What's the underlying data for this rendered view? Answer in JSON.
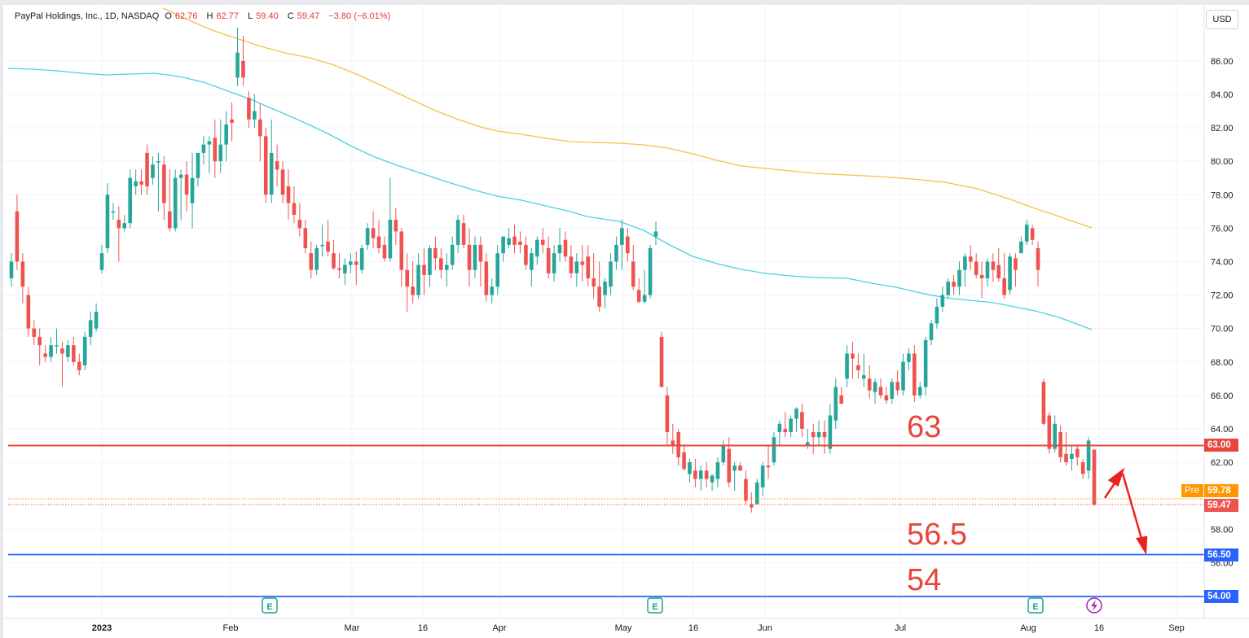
{
  "legend": {
    "symbol": "PayPal Holdings, Inc., 1D, NASDAQ",
    "open_label": "O",
    "open": "62.76",
    "high_label": "H",
    "high": "62.77",
    "low_label": "L",
    "low": "59.40",
    "close_label": "C",
    "close": "59.47",
    "change": "−3.80 (−6.01%)"
  },
  "currency": "USD",
  "price_tags": {
    "resistance": "63.00",
    "pre_label": "Pre",
    "pre_value": "59.78",
    "last": "59.47",
    "support_1": "56.50",
    "support_2": "54.00"
  },
  "annotations": {
    "level_63": "63",
    "level_56_5": "56.5",
    "level_54": "54"
  },
  "colors": {
    "up": "#26a69a",
    "down": "#ef5350",
    "ma_fast": "#4dd0e1",
    "ma_slow": "#f7c04a",
    "resistance": "#e8453c",
    "support": "#2962ff",
    "pre": "#ff9800",
    "arrow": "#e8231d"
  },
  "chart_data": {
    "type": "candlestick",
    "y_axis": {
      "ticks": [
        "86.00",
        "84.00",
        "82.00",
        "80.00",
        "78.00",
        "76.00",
        "74.00",
        "72.00",
        "70.00",
        "68.00",
        "66.00",
        "64.00",
        "62.00",
        "58.00",
        "56.00"
      ],
      "range": [
        53.7,
        88.8
      ]
    },
    "x_axis": {
      "ticks": [
        "2023",
        "Feb",
        "Mar",
        "16",
        "Apr",
        "May",
        "16",
        "Jun",
        "Jul",
        "Aug",
        "16",
        "Sep"
      ]
    },
    "horizontal_lines": [
      63.0,
      56.5,
      54.0
    ],
    "earnings_markers": [
      "E",
      "E",
      "E"
    ],
    "candles": [
      [
        73.0,
        74.5,
        72.5,
        74.0
      ],
      [
        77.0,
        78.0,
        73.5,
        74.0
      ],
      [
        74.0,
        74.5,
        71.5,
        72.5
      ],
      [
        72.0,
        72.5,
        69.5,
        70.0
      ],
      [
        70.0,
        70.5,
        69.0,
        69.5
      ],
      [
        69.5,
        70.0,
        67.8,
        69.0
      ],
      [
        68.5,
        69.0,
        68.0,
        68.3
      ],
      [
        68.3,
        69.5,
        68.0,
        69.0
      ],
      [
        69.0,
        70.0,
        68.5,
        69.0
      ],
      [
        68.8,
        69.2,
        66.5,
        68.5
      ],
      [
        68.3,
        69.3,
        68.0,
        69.0
      ],
      [
        69.0,
        69.5,
        67.8,
        68.0
      ],
      [
        68.0,
        68.5,
        67.2,
        67.5
      ],
      [
        67.8,
        69.8,
        67.5,
        69.5
      ],
      [
        69.5,
        71.0,
        69.0,
        70.5
      ],
      [
        70.0,
        71.5,
        69.8,
        71.0
      ],
      [
        73.5,
        75.0,
        73.3,
        74.5
      ],
      [
        74.8,
        78.7,
        74.5,
        78.0
      ],
      [
        77.0,
        77.5,
        76.5,
        77.0
      ],
      [
        76.5,
        77.3,
        74.0,
        76.0
      ],
      [
        76.0,
        76.8,
        75.8,
        76.3
      ],
      [
        76.3,
        79.5,
        76.0,
        79.0
      ],
      [
        78.5,
        79.5,
        78.0,
        78.8
      ],
      [
        78.8,
        79.5,
        78.0,
        78.6
      ],
      [
        80.5,
        81.0,
        78.0,
        78.5
      ],
      [
        79.0,
        80.3,
        78.6,
        79.8
      ],
      [
        80.0,
        80.5,
        77.0,
        80.0
      ],
      [
        79.8,
        80.3,
        76.5,
        77.5
      ],
      [
        77.0,
        79.5,
        75.8,
        76.0
      ],
      [
        76.0,
        79.5,
        75.8,
        79.0
      ],
      [
        79.0,
        79.5,
        76.5,
        79.2
      ],
      [
        79.2,
        80.0,
        77.0,
        78.0
      ],
      [
        77.5,
        80.5,
        76.0,
        79.0
      ],
      [
        79.0,
        80.5,
        78.5,
        80.5
      ],
      [
        80.5,
        81.5,
        79.8,
        81.0
      ],
      [
        81.0,
        81.5,
        79.3,
        81.2
      ],
      [
        81.4,
        82.5,
        79.0,
        80.0
      ],
      [
        80.0,
        82.5,
        79.3,
        81.0
      ],
      [
        81.0,
        83.0,
        80.0,
        82.2
      ],
      [
        82.5,
        83.5,
        81.2,
        82.3
      ],
      [
        85.0,
        88.0,
        84.5,
        86.5
      ],
      [
        86.0,
        87.5,
        84.5,
        85.0
      ],
      [
        83.8,
        84.2,
        82.0,
        82.5
      ],
      [
        82.5,
        84.0,
        82.0,
        83.0
      ],
      [
        82.5,
        83.5,
        80.0,
        81.5
      ],
      [
        81.5,
        82.0,
        77.5,
        78.0
      ],
      [
        78.0,
        82.5,
        77.5,
        80.5
      ],
      [
        80.0,
        81.0,
        78.5,
        79.5
      ],
      [
        79.5,
        80.0,
        77.5,
        78.0
      ],
      [
        78.5,
        79.5,
        76.5,
        77.5
      ],
      [
        77.5,
        78.5,
        76.3,
        76.8
      ],
      [
        76.5,
        77.5,
        75.5,
        76.0
      ],
      [
        76.0,
        76.5,
        74.5,
        74.8
      ],
      [
        74.5,
        75.2,
        73.0,
        73.5
      ],
      [
        73.5,
        75.0,
        73.2,
        74.8
      ],
      [
        75.0,
        76.2,
        74.3,
        75.0
      ],
      [
        75.2,
        76.5,
        74.3,
        74.6
      ],
      [
        74.5,
        75.3,
        73.5,
        73.6
      ],
      [
        73.6,
        74.5,
        73.0,
        73.5
      ],
      [
        73.3,
        74.2,
        72.6,
        73.8
      ],
      [
        73.8,
        74.5,
        73.3,
        74.0
      ],
      [
        74.0,
        74.6,
        72.6,
        73.8
      ],
      [
        73.5,
        75.0,
        73.3,
        74.8
      ],
      [
        75.0,
        76.3,
        74.7,
        76.0
      ],
      [
        76.0,
        77.0,
        74.8,
        75.4
      ],
      [
        75.5,
        76.5,
        74.5,
        74.8
      ],
      [
        75.0,
        75.5,
        74.0,
        74.2
      ],
      [
        74.2,
        79.0,
        74.0,
        76.5
      ],
      [
        76.5,
        77.2,
        75.0,
        75.8
      ],
      [
        75.8,
        76.0,
        72.5,
        73.5
      ],
      [
        73.5,
        74.5,
        71.0,
        72.5
      ],
      [
        72.5,
        74.0,
        71.5,
        72.0
      ],
      [
        72.0,
        74.5,
        71.8,
        73.8
      ],
      [
        73.8,
        74.8,
        72.0,
        73.2
      ],
      [
        73.2,
        75.0,
        72.5,
        74.8
      ],
      [
        74.8,
        75.5,
        73.5,
        74.2
      ],
      [
        74.2,
        74.8,
        73.0,
        73.5
      ],
      [
        73.5,
        74.5,
        72.5,
        73.8
      ],
      [
        73.8,
        75.5,
        73.5,
        75.0
      ],
      [
        75.0,
        76.8,
        74.5,
        76.5
      ],
      [
        76.3,
        76.8,
        74.8,
        75.0
      ],
      [
        75.0,
        76.0,
        72.5,
        73.5
      ],
      [
        73.5,
        75.5,
        73.0,
        75.0
      ],
      [
        75.0,
        75.5,
        72.5,
        74.0
      ],
      [
        74.0,
        74.5,
        71.6,
        72.0
      ],
      [
        72.0,
        73.0,
        71.5,
        72.5
      ],
      [
        72.5,
        75.0,
        72.0,
        74.5
      ],
      [
        74.5,
        75.5,
        74.0,
        75.5
      ],
      [
        75.0,
        76.0,
        74.8,
        75.4
      ],
      [
        75.5,
        76.2,
        74.5,
        75.0
      ],
      [
        75.2,
        75.8,
        74.5,
        75.0
      ],
      [
        75.0,
        75.5,
        73.5,
        73.8
      ],
      [
        73.5,
        74.8,
        72.5,
        74.5
      ],
      [
        74.3,
        75.5,
        73.8,
        75.3
      ],
      [
        75.3,
        76.0,
        74.5,
        75.0
      ],
      [
        74.8,
        75.5,
        73.0,
        73.3
      ],
      [
        73.3,
        75.0,
        72.8,
        74.5
      ],
      [
        74.5,
        76.0,
        74.0,
        75.0
      ],
      [
        75.3,
        75.8,
        74.0,
        74.3
      ],
      [
        74.3,
        75.0,
        73.0,
        73.3
      ],
      [
        73.3,
        74.5,
        72.5,
        74.0
      ],
      [
        74.0,
        75.0,
        72.8,
        73.8
      ],
      [
        74.3,
        75.0,
        72.5,
        73.0
      ],
      [
        73.0,
        74.5,
        71.8,
        72.5
      ],
      [
        72.5,
        74.0,
        71.0,
        71.3
      ],
      [
        72.0,
        73.0,
        71.2,
        72.8
      ],
      [
        72.5,
        74.5,
        72.0,
        74.0
      ],
      [
        74.0,
        75.5,
        73.5,
        75.0
      ],
      [
        75.0,
        76.5,
        73.5,
        76.0
      ],
      [
        75.5,
        76.0,
        74.0,
        74.5
      ],
      [
        74.0,
        75.0,
        72.3,
        72.5
      ],
      [
        72.3,
        73.0,
        71.5,
        71.6
      ],
      [
        71.6,
        73.5,
        71.5,
        72.0
      ],
      [
        72.0,
        75.0,
        71.8,
        74.8
      ],
      [
        75.5,
        76.4,
        75.0,
        75.8
      ],
      [
        69.5,
        69.8,
        66.5,
        66.5
      ],
      [
        66.0,
        66.5,
        63.0,
        63.8
      ],
      [
        63.3,
        64.3,
        62.5,
        63.0
      ],
      [
        63.8,
        64.0,
        61.8,
        62.3
      ],
      [
        62.6,
        63.0,
        61.5,
        61.6
      ],
      [
        61.3,
        62.2,
        60.8,
        62.0
      ],
      [
        61.5,
        62.2,
        60.5,
        61.0
      ],
      [
        61.0,
        61.8,
        60.3,
        61.5
      ],
      [
        61.5,
        62.0,
        60.5,
        61.0
      ],
      [
        60.8,
        61.3,
        60.3,
        61.2
      ],
      [
        61.0,
        62.3,
        60.5,
        62.0
      ],
      [
        62.0,
        63.3,
        61.8,
        63.0
      ],
      [
        62.8,
        63.5,
        60.5,
        60.8
      ],
      [
        61.5,
        62.0,
        60.3,
        61.8
      ],
      [
        61.8,
        62.0,
        61.5,
        61.5
      ],
      [
        61.0,
        61.5,
        59.5,
        59.7
      ],
      [
        59.5,
        60.2,
        59.0,
        59.3
      ],
      [
        59.5,
        61.0,
        59.5,
        60.8
      ],
      [
        60.5,
        62.0,
        60.0,
        61.8
      ],
      [
        61.8,
        63.0,
        61.0,
        61.7
      ],
      [
        62.0,
        63.8,
        61.8,
        63.5
      ],
      [
        63.8,
        64.5,
        63.0,
        64.3
      ],
      [
        64.0,
        65.0,
        63.5,
        63.8
      ],
      [
        63.8,
        64.8,
        63.5,
        64.6
      ],
      [
        64.6,
        65.3,
        63.8,
        65.2
      ],
      [
        65.0,
        65.5,
        63.5,
        64.0
      ],
      [
        63.0,
        64.0,
        62.8,
        63.2
      ],
      [
        63.8,
        64.3,
        62.5,
        63.5
      ],
      [
        63.5,
        64.5,
        63.0,
        63.8
      ],
      [
        63.8,
        64.5,
        62.5,
        63.5
      ],
      [
        62.8,
        65.5,
        62.5,
        64.8
      ],
      [
        64.5,
        67.0,
        64.0,
        66.5
      ],
      [
        66.0,
        66.5,
        65.5,
        65.5
      ],
      [
        67.0,
        69.0,
        66.5,
        68.5
      ],
      [
        68.5,
        69.2,
        67.0,
        68.2
      ],
      [
        67.8,
        68.5,
        67.0,
        67.5
      ],
      [
        67.0,
        68.5,
        66.5,
        67.2
      ],
      [
        67.0,
        67.8,
        65.8,
        66.3
      ],
      [
        66.2,
        67.0,
        65.5,
        66.8
      ],
      [
        66.5,
        67.0,
        65.8,
        66.0
      ],
      [
        66.0,
        66.5,
        65.5,
        65.7
      ],
      [
        65.8,
        67.0,
        65.5,
        66.8
      ],
      [
        66.8,
        67.5,
        66.0,
        66.3
      ],
      [
        66.3,
        68.5,
        66.0,
        68.0
      ],
      [
        68.0,
        68.8,
        67.5,
        68.5
      ],
      [
        68.5,
        69.0,
        65.6,
        66.0
      ],
      [
        66.0,
        66.8,
        65.8,
        66.5
      ],
      [
        66.5,
        69.5,
        66.0,
        69.3
      ],
      [
        69.3,
        70.5,
        69.0,
        70.3
      ],
      [
        70.3,
        71.8,
        70.0,
        71.3
      ],
      [
        71.3,
        72.5,
        71.0,
        72.0
      ],
      [
        72.0,
        73.0,
        71.8,
        72.8
      ],
      [
        72.8,
        73.2,
        72.0,
        72.5
      ],
      [
        72.5,
        74.0,
        72.0,
        73.5
      ],
      [
        73.5,
        74.5,
        72.5,
        74.3
      ],
      [
        74.3,
        75.0,
        73.5,
        74.0
      ],
      [
        74.0,
        74.5,
        73.0,
        73.2
      ],
      [
        73.2,
        74.0,
        71.8,
        73.0
      ],
      [
        73.0,
        74.2,
        72.5,
        74.0
      ],
      [
        74.0,
        74.5,
        72.8,
        73.5
      ],
      [
        73.8,
        74.8,
        72.8,
        73.0
      ],
      [
        73.0,
        74.5,
        71.8,
        72.0
      ],
      [
        72.3,
        74.5,
        72.0,
        74.3
      ],
      [
        74.2,
        74.5,
        72.5,
        73.5
      ],
      [
        74.5,
        75.5,
        74.5,
        75.2
      ],
      [
        75.2,
        76.5,
        75.0,
        76.2
      ],
      [
        76.0,
        76.2,
        75.0,
        75.3
      ],
      [
        74.8,
        75.2,
        72.5,
        73.5
      ],
      [
        66.8,
        67.0,
        64.2,
        64.3
      ],
      [
        64.8,
        65.0,
        62.5,
        62.8
      ],
      [
        62.8,
        64.8,
        62.6,
        64.3
      ],
      [
        63.8,
        64.2,
        62.0,
        62.3
      ],
      [
        62.5,
        63.8,
        61.8,
        62.0
      ],
      [
        62.2,
        63.0,
        61.5,
        62.5
      ],
      [
        62.8,
        63.0,
        61.8,
        62.3
      ],
      [
        62.0,
        62.2,
        61.0,
        61.3
      ],
      [
        61.5,
        63.5,
        61.0,
        63.3
      ],
      [
        62.76,
        62.77,
        59.4,
        59.47
      ]
    ]
  }
}
